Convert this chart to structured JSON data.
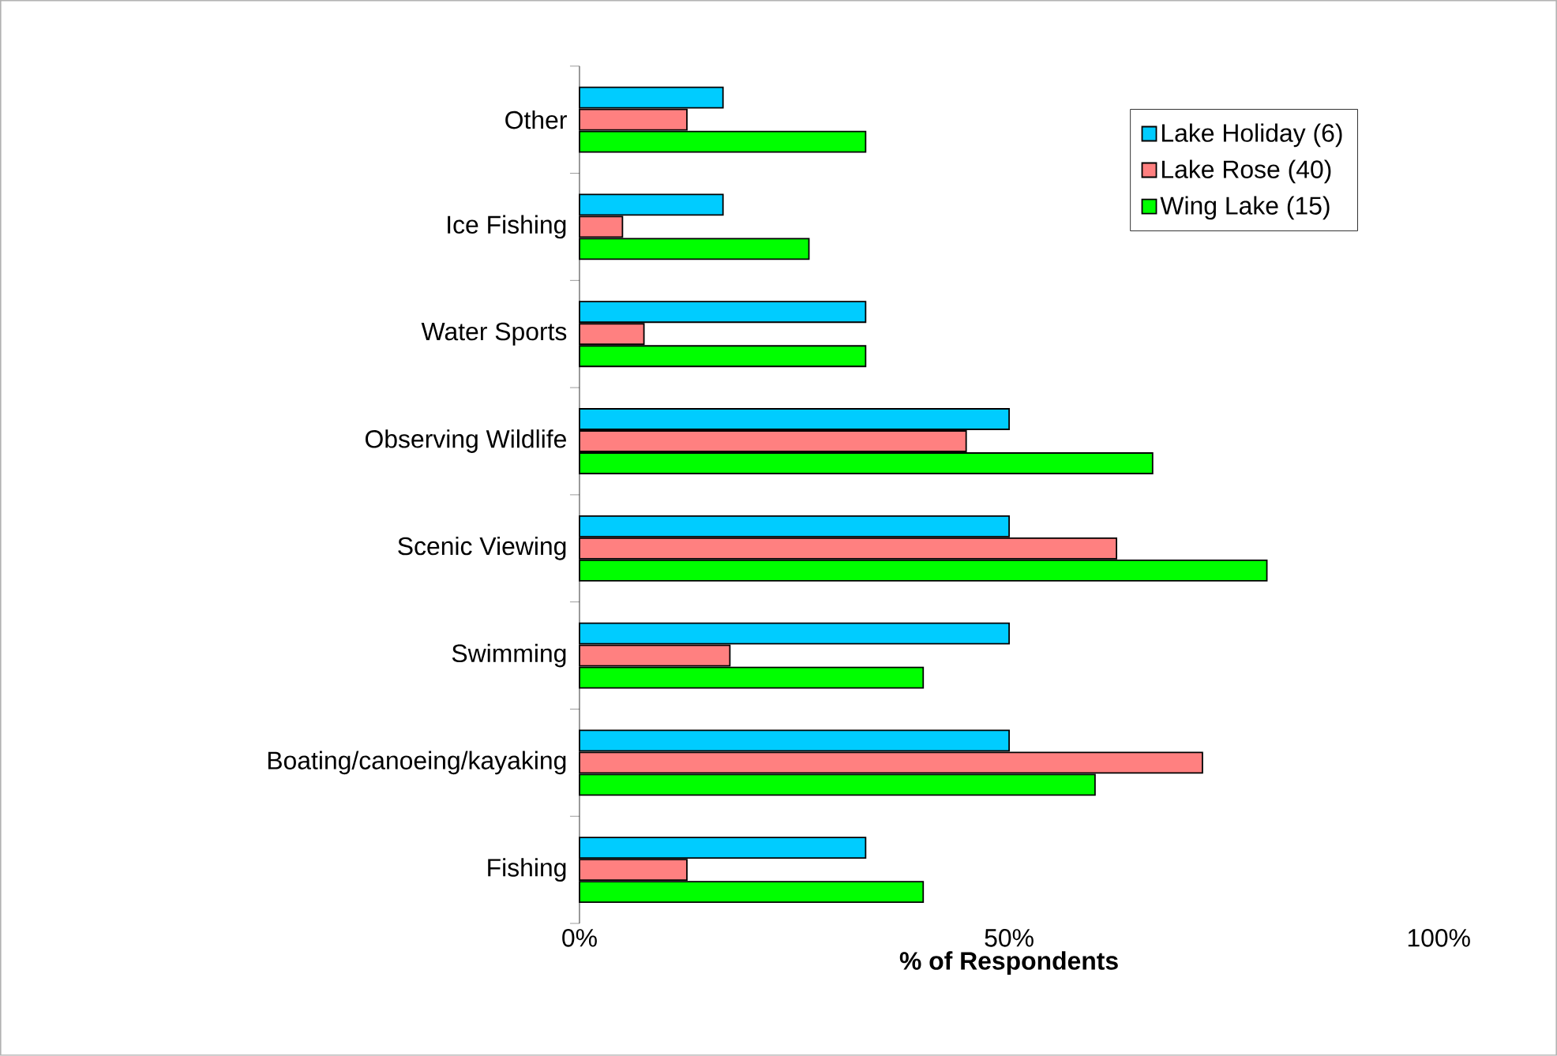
{
  "chart_data": {
    "type": "bar",
    "orientation": "horizontal",
    "xlabel": "% of Respondents",
    "categories": [
      "Other",
      "Ice Fishing",
      "Water Sports",
      "Observing Wildlife",
      "Scenic Viewing",
      "Swimming",
      "Boating/canoeing/kayaking",
      "Fishing"
    ],
    "series": [
      {
        "name": "Lake Holiday (6)",
        "color": "#00ccff",
        "values": [
          16.7,
          16.7,
          33.3,
          50,
          50,
          50,
          50,
          33.3
        ]
      },
      {
        "name": "Lake Rose (40)",
        "color": "#ff8080",
        "values": [
          12.5,
          5,
          7.5,
          45,
          62.5,
          17.5,
          72.5,
          12.5
        ]
      },
      {
        "name": "Wing Lake (15)",
        "color": "#00ff00",
        "values": [
          33.3,
          26.7,
          33.3,
          66.7,
          80,
          40,
          60,
          40
        ]
      }
    ],
    "xlim": [
      0,
      100
    ],
    "xticks": [
      {
        "value": 0,
        "label": "0%"
      },
      {
        "value": 50,
        "label": "50%"
      },
      {
        "value": 100,
        "label": "100%"
      }
    ],
    "grid": false,
    "legend": "top right"
  }
}
